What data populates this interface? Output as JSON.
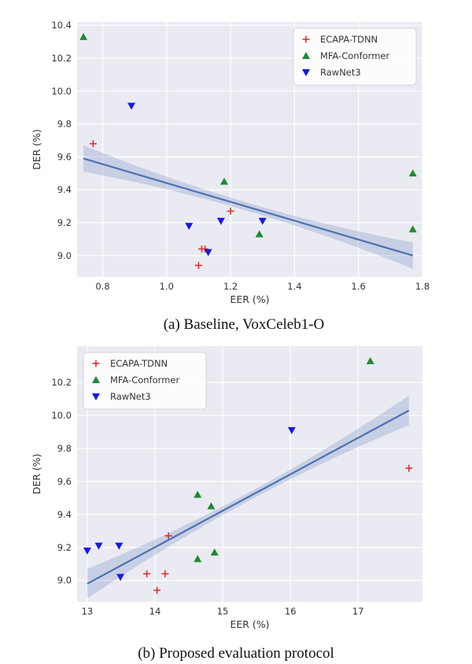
{
  "chart_data": [
    {
      "type": "scatter",
      "caption": "(a) Baseline, VoxCeleb1-O",
      "xlabel": "EER (%)",
      "ylabel": "DER (%)",
      "xlim": [
        0.72,
        1.8
      ],
      "ylim": [
        8.87,
        10.42
      ],
      "xticks": [
        "0.8",
        "1.0",
        "1.2",
        "1.4",
        "1.6",
        "1.8"
      ],
      "yticks": [
        "9.0",
        "9.2",
        "9.4",
        "9.6",
        "9.8",
        "10.0",
        "10.2",
        "10.4"
      ],
      "xtick_values": [
        0.8,
        1.0,
        1.2,
        1.4,
        1.6,
        1.8
      ],
      "ytick_values": [
        9.0,
        9.2,
        9.4,
        9.6,
        9.8,
        10.0,
        10.2,
        10.4
      ],
      "legend_position": "top-right",
      "grid": true,
      "series": [
        {
          "name": "ECAPA-TDNN",
          "marker": "plus",
          "color": "#e0312a",
          "points": [
            [
              0.77,
              9.68
            ],
            [
              1.1,
              8.94
            ],
            [
              1.11,
              9.04
            ],
            [
              1.12,
              9.04
            ],
            [
              1.2,
              9.27
            ]
          ]
        },
        {
          "name": "MFA-Conformer",
          "marker": "triangle-up",
          "color": "#1e8a32",
          "points": [
            [
              0.74,
              10.33
            ],
            [
              1.18,
              9.45
            ],
            [
              1.29,
              9.13
            ],
            [
              1.77,
              9.5
            ],
            [
              1.77,
              9.16
            ]
          ]
        },
        {
          "name": "RawNet3",
          "marker": "triangle-down",
          "color": "#1a1ae0",
          "points": [
            [
              0.89,
              9.91
            ],
            [
              1.07,
              9.18
            ],
            [
              1.13,
              9.02
            ],
            [
              1.17,
              9.21
            ],
            [
              1.3,
              9.21
            ]
          ]
        }
      ],
      "regression": {
        "x": [
          0.74,
          1.77
        ],
        "y": [
          9.59,
          9.0
        ],
        "band_halfwidth_ends": 0.08,
        "band_halfwidth_mid": 0.025,
        "color": "#4c72b0"
      }
    },
    {
      "type": "scatter",
      "caption": "(b) Proposed evaluation protocol",
      "xlabel": "EER (%)",
      "ylabel": "DER (%)",
      "xlim": [
        12.85,
        17.95
      ],
      "ylim": [
        8.87,
        10.42
      ],
      "xticks": [
        "13",
        "14",
        "15",
        "16",
        "17"
      ],
      "yticks": [
        "9.0",
        "9.2",
        "9.4",
        "9.6",
        "9.8",
        "10.0",
        "10.2"
      ],
      "xtick_values": [
        13,
        14,
        15,
        16,
        17
      ],
      "ytick_values": [
        9.0,
        9.2,
        9.4,
        9.6,
        9.8,
        10.0,
        10.2
      ],
      "legend_position": "top-left",
      "grid": true,
      "series": [
        {
          "name": "ECAPA-TDNN",
          "marker": "plus",
          "color": "#e0312a",
          "points": [
            [
              13.88,
              9.04
            ],
            [
              14.03,
              8.94
            ],
            [
              14.15,
              9.04
            ],
            [
              14.2,
              9.27
            ],
            [
              17.75,
              9.68
            ]
          ]
        },
        {
          "name": "MFA-Conformer",
          "marker": "triangle-up",
          "color": "#1e8a32",
          "points": [
            [
              14.63,
              9.52
            ],
            [
              14.63,
              9.13
            ],
            [
              14.83,
              9.45
            ],
            [
              14.88,
              9.17
            ],
            [
              17.18,
              10.33
            ]
          ]
        },
        {
          "name": "RawNet3",
          "marker": "triangle-down",
          "color": "#1a1ae0",
          "points": [
            [
              13.0,
              9.18
            ],
            [
              13.17,
              9.21
            ],
            [
              13.47,
              9.21
            ],
            [
              13.49,
              9.02
            ],
            [
              16.02,
              9.91
            ]
          ]
        }
      ],
      "regression": {
        "x": [
          13.0,
          17.75
        ],
        "y": [
          8.98,
          10.03
        ],
        "band_halfwidth_ends": 0.09,
        "band_halfwidth_mid": 0.025,
        "color": "#4c72b0"
      }
    }
  ]
}
